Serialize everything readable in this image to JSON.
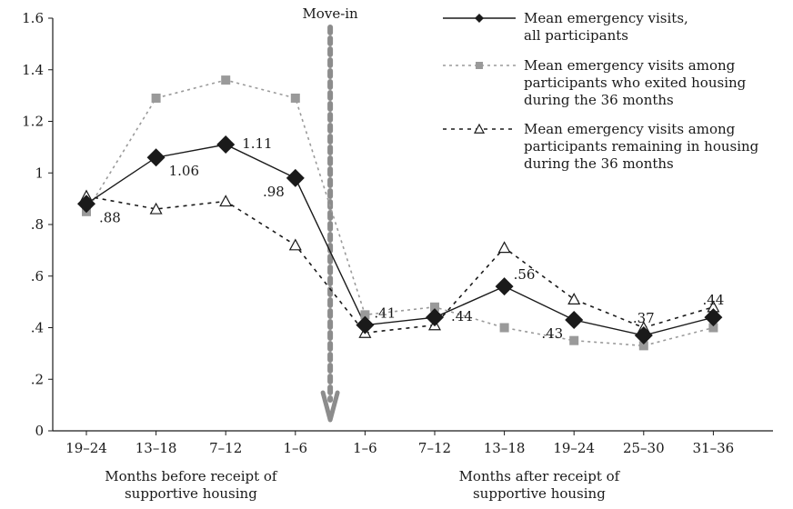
{
  "chart_data": {
    "type": "line",
    "categories": [
      "19–24",
      "13–18",
      "7–12",
      "1–6",
      "1–6",
      "7–12",
      "13–18",
      "19–24",
      "25–30",
      "31–36"
    ],
    "category_groups": [
      {
        "label_lines": [
          "Months before receipt of",
          "supportive housing"
        ],
        "from": 0,
        "to": 3
      },
      {
        "label_lines": [
          "Months after receipt of",
          "supportive housing"
        ],
        "from": 4,
        "to": 9
      }
    ],
    "series": [
      {
        "name_lines": [
          "Mean emergency visits,",
          "all participants"
        ],
        "values": [
          0.88,
          1.06,
          1.11,
          0.98,
          0.41,
          0.44,
          0.56,
          0.43,
          0.37,
          0.44
        ],
        "color": "#1a1a1a",
        "line": "solid",
        "marker": "diamond"
      },
      {
        "name_lines": [
          "Mean emergency visits among",
          "participants who exited housing",
          "during the 36 months"
        ],
        "values": [
          0.85,
          1.29,
          1.36,
          1.29,
          0.45,
          0.48,
          0.4,
          0.35,
          0.33,
          0.4
        ],
        "color": "#9a9a9a",
        "line": "dotted",
        "marker": "square"
      },
      {
        "name_lines": [
          "Mean emergency visits among",
          "participants remaining in housing",
          "during the 36 months"
        ],
        "values": [
          0.91,
          0.86,
          0.89,
          0.72,
          0.38,
          0.41,
          0.71,
          0.51,
          0.4,
          0.48
        ],
        "color": "#1a1a1a",
        "line": "dashed",
        "marker": "triangle"
      }
    ],
    "data_labels": [
      {
        "series": 0,
        "index": 0,
        "text": ".88",
        "side": "below-right"
      },
      {
        "series": 0,
        "index": 1,
        "text": "1.06",
        "side": "below-right"
      },
      {
        "series": 0,
        "index": 2,
        "text": "1.11",
        "side": "right"
      },
      {
        "series": 0,
        "index": 3,
        "text": ".98",
        "side": "left"
      },
      {
        "series": 0,
        "index": 4,
        "text": ".41",
        "side": "above-right"
      },
      {
        "series": 0,
        "index": 5,
        "text": ".44",
        "side": "right"
      },
      {
        "series": 0,
        "index": 6,
        "text": ".56",
        "side": "above-right"
      },
      {
        "series": 0,
        "index": 7,
        "text": ".43",
        "side": "left"
      },
      {
        "series": 0,
        "index": 8,
        "text": ".37",
        "side": "above"
      },
      {
        "series": 0,
        "index": 9,
        "text": ".44",
        "side": "above"
      }
    ],
    "yticks": [
      {
        "value": 0,
        "label": "0"
      },
      {
        "value": 0.2,
        "label": ".2"
      },
      {
        "value": 0.4,
        "label": ".4"
      },
      {
        "value": 0.6,
        "label": ".6"
      },
      {
        "value": 0.8,
        "label": ".8"
      },
      {
        "value": 1.0,
        "label": "1"
      },
      {
        "value": 1.2,
        "label": "1.2"
      },
      {
        "value": 1.4,
        "label": "1.4"
      },
      {
        "value": 1.6,
        "label": "1.6"
      }
    ],
    "ylim": [
      0,
      1.6
    ],
    "grid": false,
    "legend_position": "top-right",
    "annotation": {
      "text": "Move-in",
      "between": [
        3,
        4
      ],
      "marker": "dashed-down-arrow"
    }
  }
}
